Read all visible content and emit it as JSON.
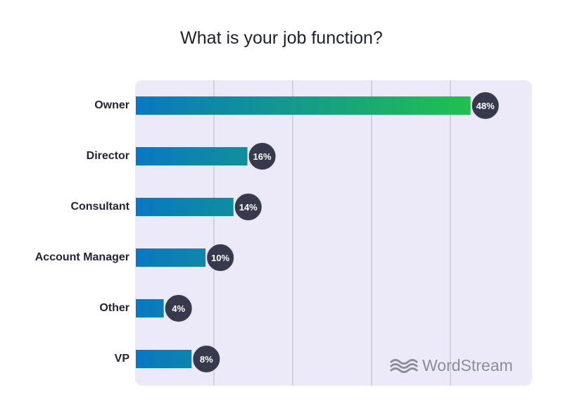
{
  "colors": {
    "plot_background": "#eceaf8",
    "gridline": "#b9b8c7",
    "bar_start": "#0a77c2",
    "bar_end": "#21c04f",
    "badge_fill": "#363a4c",
    "badge_stroke": "#e8e7f4",
    "badge_text": "#ffffff",
    "logo": "#8b8e96"
  },
  "chart_data": {
    "type": "bar",
    "orientation": "horizontal",
    "title": "What is your job function?",
    "categories": [
      "Owner",
      "Director",
      "Consultant",
      "Account Manager",
      "Other",
      "VP"
    ],
    "values": [
      48,
      16,
      14,
      10,
      4,
      8
    ],
    "data_labels": [
      "48%",
      "16%",
      "14%",
      "10%",
      "4%",
      "8%"
    ],
    "xlim": [
      0,
      50
    ],
    "grid": true,
    "legend": "none"
  },
  "branding": {
    "logo_text": "WordStream",
    "logo_icon": "wave-icon"
  }
}
